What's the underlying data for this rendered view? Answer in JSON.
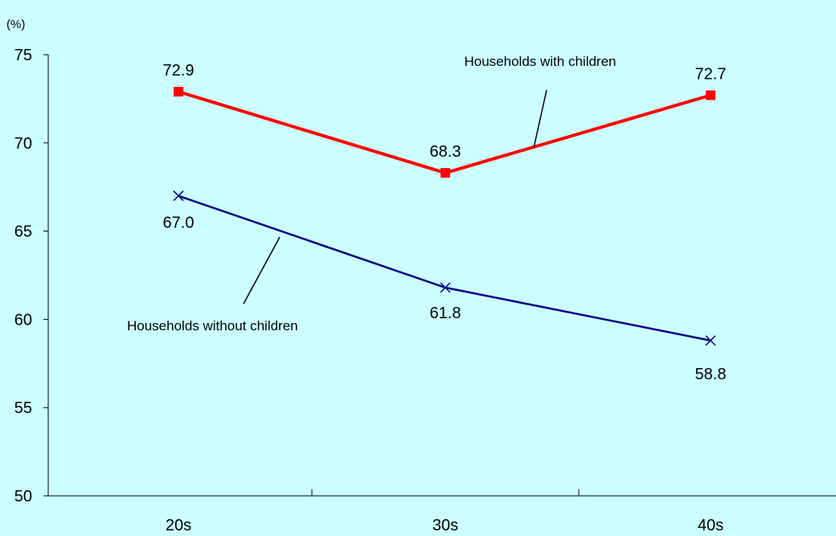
{
  "chart_data": {
    "type": "line",
    "unit_label": "(%)",
    "categories": [
      "20s",
      "30s",
      "40s"
    ],
    "ylim": [
      50,
      75
    ],
    "yticks": [
      50,
      55,
      60,
      65,
      70,
      75
    ],
    "grid": false,
    "legend": "none",
    "series": [
      {
        "name": "Households with children",
        "values": [
          72.9,
          68.3,
          72.7
        ],
        "labels": [
          "72.9",
          "68.3",
          "72.7"
        ],
        "color": "#ff0000",
        "marker": "square"
      },
      {
        "name": "Households without children",
        "values": [
          67.0,
          61.8,
          58.8
        ],
        "labels": [
          "67.0",
          "61.8",
          "58.8"
        ],
        "color": "#000080",
        "marker": "x"
      }
    ]
  },
  "colors": {
    "background": "#ccffff",
    "axis": "#000000"
  }
}
